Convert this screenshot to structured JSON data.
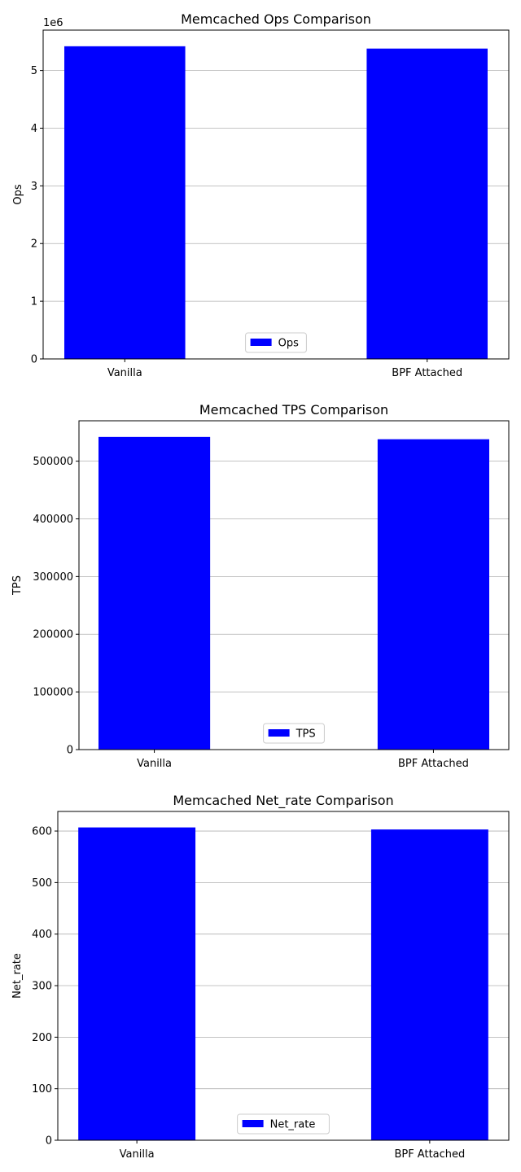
{
  "chart_data": [
    {
      "type": "bar",
      "title": "Memcached Ops Comparison",
      "xlabel": "",
      "ylabel": "Ops",
      "categories": [
        "Vanilla",
        "BPF Attached"
      ],
      "series": [
        {
          "name": "Ops",
          "values": [
            5420000,
            5380000
          ],
          "color": "#0000ff"
        }
      ],
      "ylim": [
        0,
        5700000
      ],
      "yticks": [
        0,
        1000000,
        2000000,
        3000000,
        4000000,
        5000000
      ],
      "ytick_labels": [
        "0",
        "1",
        "2",
        "3",
        "4",
        "5"
      ],
      "y_offset_label": "1e6",
      "grid": "y",
      "legend": "lower center"
    },
    {
      "type": "bar",
      "title": "Memcached TPS Comparison",
      "xlabel": "",
      "ylabel": "TPS",
      "categories": [
        "Vanilla",
        "BPF Attached"
      ],
      "series": [
        {
          "name": "TPS",
          "values": [
            542000,
            538000
          ],
          "color": "#0000ff"
        }
      ],
      "ylim": [
        0,
        570000
      ],
      "yticks": [
        0,
        100000,
        200000,
        300000,
        400000,
        500000
      ],
      "ytick_labels": [
        "0",
        "100000",
        "200000",
        "300000",
        "400000",
        "500000"
      ],
      "y_offset_label": "",
      "grid": "y",
      "legend": "lower center"
    },
    {
      "type": "bar",
      "title": "Memcached Net_rate Comparison",
      "xlabel": "",
      "ylabel": "Net_rate",
      "categories": [
        "Vanilla",
        "BPF Attached"
      ],
      "series": [
        {
          "name": "Net_rate",
          "values": [
            607,
            603
          ],
          "color": "#0000ff"
        }
      ],
      "ylim": [
        0,
        638
      ],
      "yticks": [
        0,
        100,
        200,
        300,
        400,
        500,
        600
      ],
      "ytick_labels": [
        "0",
        "100",
        "200",
        "300",
        "400",
        "500",
        "600"
      ],
      "y_offset_label": "",
      "grid": "y",
      "legend": "lower center"
    }
  ]
}
